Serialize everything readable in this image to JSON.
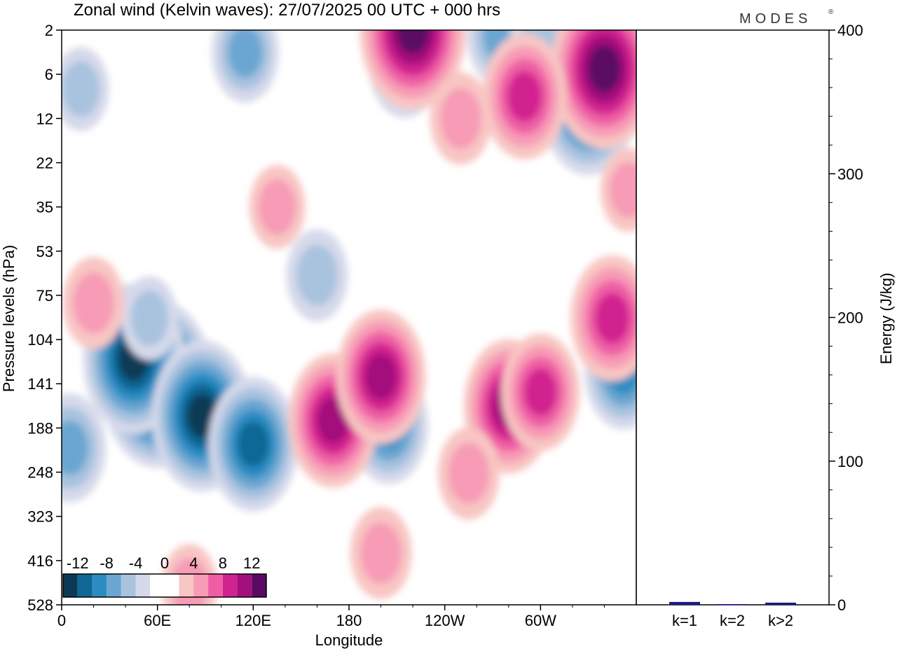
{
  "chart_data": [
    {
      "type": "heatmap",
      "title": "Zonal wind (Kelvin waves):  27/07/2025  00 UTC  + 000 hrs",
      "brand": "MODES",
      "brand_mark": "®",
      "xlabel": "Longitude",
      "ylabel": "Pressure levels (hPa)",
      "x_ticks": [
        "0",
        "60E",
        "120E",
        "180",
        "120W",
        "60W"
      ],
      "y_ticks": [
        "2",
        "6",
        "12",
        "22",
        "35",
        "53",
        "75",
        "104",
        "141",
        "188",
        "248",
        "323",
        "416",
        "528"
      ],
      "colorbar": {
        "tick_labels": [
          "-12",
          "-8",
          "-4",
          "0",
          "4",
          "8",
          "12"
        ],
        "colors": [
          "#0b3a57",
          "#0f6796",
          "#2c8cc2",
          "#6ba6d1",
          "#a9c3df",
          "#d6d9ea",
          "#ffffff",
          "#ffffff",
          "#f8c6c3",
          "#f79bb6",
          "#ef5ea5",
          "#d1238f",
          "#a30f7c",
          "#5a0a63"
        ]
      },
      "field_features": [
        {
          "lon": 60,
          "plev": 141,
          "u": -13
        },
        {
          "lon": 45,
          "plev": 120,
          "u": -11
        },
        {
          "lon": 88,
          "plev": 175,
          "u": -11
        },
        {
          "lon": 120,
          "plev": 210,
          "u": -9
        },
        {
          "lon": 5,
          "plev": 215,
          "u": -6
        },
        {
          "lon": 205,
          "plev": 185,
          "u": -7
        },
        {
          "lon": 352,
          "plev": 130,
          "u": -7
        },
        {
          "lon": 330,
          "plev": 10,
          "u": -10
        },
        {
          "lon": 55,
          "plev": 90,
          "u": -3
        },
        {
          "lon": 160,
          "plev": 65,
          "u": -4
        },
        {
          "lon": 215,
          "plev": 5,
          "u": -6
        },
        {
          "lon": 275,
          "plev": 2.5,
          "u": -5
        },
        {
          "lon": 115,
          "plev": 4,
          "u": -5
        },
        {
          "lon": 12,
          "plev": 8,
          "u": -3
        },
        {
          "lon": 300,
          "plev": 3,
          "u": -4
        },
        {
          "lon": 170,
          "plev": 180,
          "u": 9
        },
        {
          "lon": 200,
          "plev": 135,
          "u": 9
        },
        {
          "lon": 280,
          "plev": 165,
          "u": 9
        },
        {
          "lon": 300,
          "plev": 150,
          "u": 7
        },
        {
          "lon": 345,
          "plev": 90,
          "u": 8
        },
        {
          "lon": 255,
          "plev": 250,
          "u": 4
        },
        {
          "lon": 200,
          "plev": 400,
          "u": 4
        },
        {
          "lon": 80,
          "plev": 480,
          "u": 3
        },
        {
          "lon": 135,
          "plev": 35,
          "u": 3
        },
        {
          "lon": 20,
          "plev": 80,
          "u": 4
        },
        {
          "lon": 220,
          "plev": 2,
          "u": 12
        },
        {
          "lon": 340,
          "plev": 5.5,
          "u": 12
        },
        {
          "lon": 290,
          "plev": 9,
          "u": 8
        },
        {
          "lon": 250,
          "plev": 12,
          "u": 4
        },
        {
          "lon": 355,
          "plev": 30,
          "u": 3
        }
      ]
    },
    {
      "type": "bar",
      "ylabel": "Energy (J/kg)",
      "categories": [
        "k=1",
        "k=2",
        "k>2"
      ],
      "values": [
        2,
        0.5,
        1.5
      ],
      "ylim": [
        0,
        400
      ],
      "y_ticks": [
        "0",
        "100",
        "200",
        "300",
        "400"
      ],
      "bar_color": "#1a1a8c"
    }
  ]
}
